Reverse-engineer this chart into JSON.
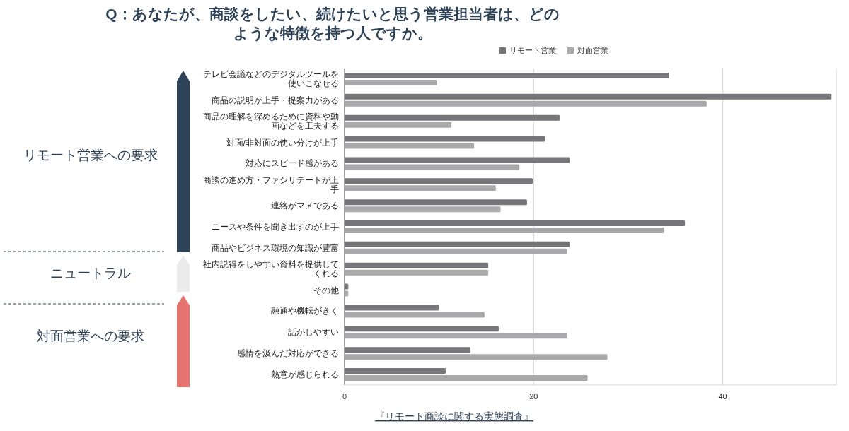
{
  "chart_data": {
    "type": "bar",
    "orientation": "horizontal",
    "title": "Q：あなたが、商談をしたい、続けたいと思う営業担当者は、どのような特徴を持つ人ですか。",
    "categories": [
      "テレビ会議などのデジタルツールを使いこなせる",
      "商品の説明が上手・提案力がある",
      "商品の理解を深めるために資料や動画などを工夫する",
      "対面/非対面の使い分けが上手",
      "対応にスピード感がある",
      "商談の進め方・ファシリテートが上手",
      "連絡がマメである",
      "ニースや条件を聞き出すのが上手",
      "商品やビジネス環境の知識が豊富",
      "社内説得をしやすい資料を提供してくれる",
      "その他",
      "融通や機転がきく",
      "話がしやすい",
      "感情を汲んだ対応ができる",
      "熱意が感じられる"
    ],
    "series": [
      {
        "name": "リモート営業",
        "color": "#77777b",
        "values": [
          34.3,
          51.5,
          22.8,
          21.2,
          23.8,
          19.9,
          19.3,
          36.0,
          23.8,
          15.2,
          0.4,
          10.0,
          16.3,
          13.3,
          10.7
        ]
      },
      {
        "name": "対面営業",
        "color": "#a9a9ab",
        "values": [
          9.8,
          38.3,
          11.3,
          13.7,
          18.5,
          16.0,
          16.5,
          33.8,
          23.5,
          15.2,
          0.4,
          14.8,
          23.5,
          27.8,
          25.7
        ]
      }
    ],
    "xlim": [
      0,
      52
    ],
    "xticks": [
      0,
      20,
      40
    ],
    "grid": "x",
    "legend": "top",
    "annotations": [
      "リモート営業への要求",
      "ニュートラル",
      "対面営業への要求",
      "『リモート商談に関する実態調査』"
    ]
  }
}
